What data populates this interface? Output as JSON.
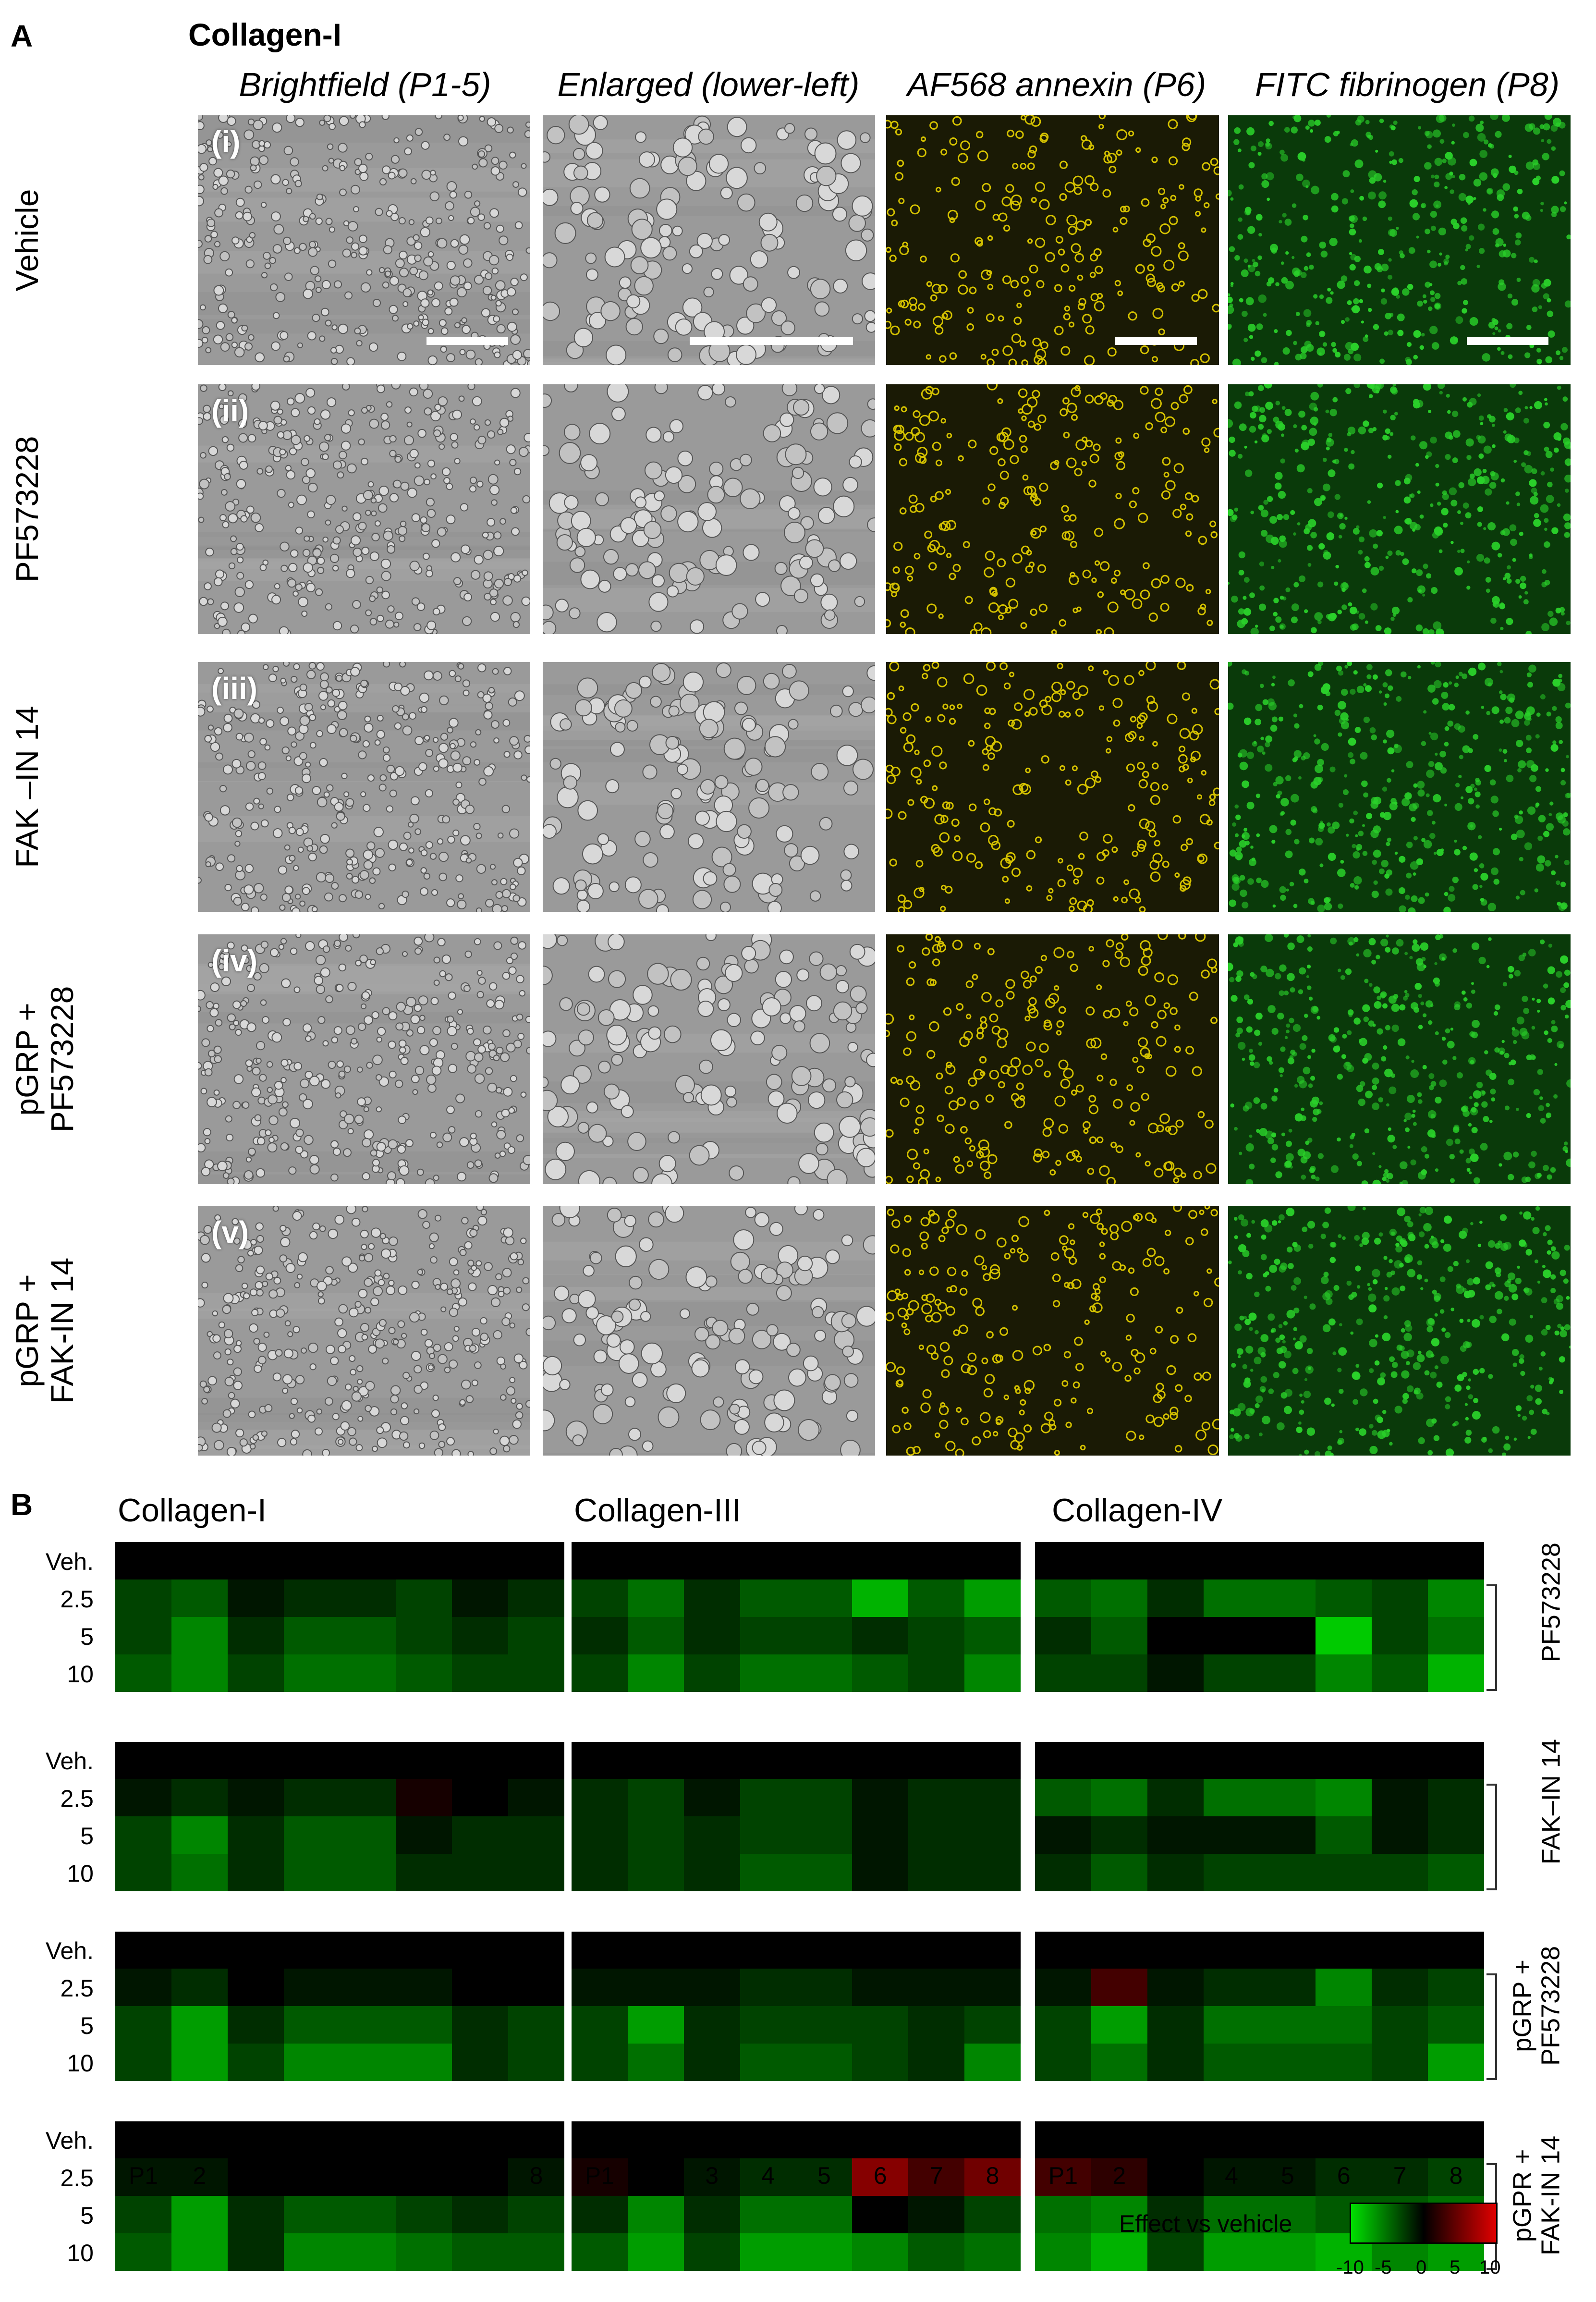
{
  "panel_a": {
    "letter": "A",
    "title": "Collagen-I",
    "column_headers": [
      "Brightfield (P1-5)",
      "Enlarged (lower-left)",
      "AF568 annexin (P6)",
      "FITC fibrinogen (P8)"
    ],
    "rows": [
      {
        "roman": "(i)",
        "label_lines": [
          "Vehicle"
        ]
      },
      {
        "roman": "(ii)",
        "label_lines": [
          "PF573228"
        ]
      },
      {
        "roman": "(iii)",
        "label_lines": [
          "FAK –IN 14"
        ]
      },
      {
        "roman": "(iv)",
        "label_lines": [
          "pGRP +",
          "PF573228"
        ]
      },
      {
        "roman": "(v)",
        "label_lines": [
          "pGRP +",
          "FAK-IN 14"
        ]
      }
    ],
    "image_colors": {
      "brightfield": "#9a9a9a",
      "annexin": "#1a1a05",
      "annexin_dot": "#d4c100",
      "fibrinogen": "#0a3a0a",
      "fibrinogen_dot": "#2ad12a"
    }
  },
  "panel_b": {
    "letter": "B",
    "collagen_titles": [
      "Collagen-I",
      "Collagen-III",
      "Collagen-IV"
    ],
    "row_labels": [
      "Veh.",
      "2.5",
      "5",
      "10"
    ],
    "column_labels": [
      "P1",
      "2",
      "3",
      "4",
      "5",
      "6",
      "7",
      "8"
    ],
    "group_labels": [
      {
        "lines": [
          "PF573228"
        ]
      },
      {
        "lines": [
          "FAK–IN 14"
        ]
      },
      {
        "lines": [
          "pGRP +",
          "PF573228"
        ]
      },
      {
        "lines": [
          "pGPR +",
          "FAK-IN 14"
        ]
      }
    ],
    "legend": {
      "title": "Effect vs vehicle",
      "ticks": [
        "-10",
        "-5",
        "0",
        "5",
        "10"
      ],
      "low_color": "#00e000",
      "mid_color": "#000000",
      "high_color": "#e00000"
    }
  },
  "chart_data": {
    "type": "heatmap",
    "xlabel": "",
    "ylabel": "",
    "columns": [
      "P1",
      "2",
      "3",
      "4",
      "5",
      "6",
      "7",
      "8"
    ],
    "rows": [
      "Veh.",
      "2.5",
      "5",
      "10"
    ],
    "range": [
      -10,
      10
    ],
    "collagens": [
      "Collagen-I",
      "Collagen-III",
      "Collagen-IV"
    ],
    "groups": [
      "PF573228",
      "FAK–IN 14",
      "pGRP + PF573228",
      "pGPR + FAK-IN 14"
    ],
    "values": [
      [
        [
          [
            0,
            0,
            0,
            0,
            0,
            0,
            0,
            0
          ],
          [
            -3,
            -4,
            -1,
            -2,
            -2,
            -3,
            -1,
            -2
          ],
          [
            -3,
            -6,
            -2,
            -4,
            -4,
            -3,
            -2,
            -3
          ],
          [
            -4,
            -6,
            -3,
            -5,
            -5,
            -4,
            -3,
            -3
          ]
        ],
        [
          [
            0,
            0,
            0,
            0,
            0,
            0,
            0,
            0
          ],
          [
            -1,
            -2,
            -1,
            -2,
            -2,
            1,
            0,
            -1
          ],
          [
            -3,
            -6,
            -2,
            -4,
            -4,
            -1,
            -2,
            -2
          ],
          [
            -3,
            -5,
            -2,
            -4,
            -4,
            -2,
            -2,
            -2
          ]
        ],
        [
          [
            0,
            0,
            0,
            0,
            0,
            0,
            0,
            0
          ],
          [
            -1,
            -2,
            0,
            -1,
            -1,
            -1,
            0,
            0
          ],
          [
            -3,
            -7,
            -2,
            -4,
            -4,
            -4,
            -2,
            -3
          ],
          [
            -3,
            -7,
            -3,
            -6,
            -6,
            -6,
            -2,
            -3
          ]
        ],
        [
          [
            0,
            0,
            0,
            0,
            0,
            0,
            0,
            0
          ],
          [
            -1,
            -1,
            0,
            0,
            0,
            0,
            0,
            -1
          ],
          [
            -3,
            -7,
            -2,
            -4,
            -4,
            -3,
            -2,
            -3
          ],
          [
            -4,
            -7,
            -2,
            -6,
            -6,
            -5,
            -4,
            -4
          ]
        ]
      ],
      [
        [
          [
            0,
            0,
            0,
            0,
            0,
            0,
            0,
            0
          ],
          [
            -3,
            -5,
            -2,
            -4,
            -4,
            -8,
            -4,
            -7
          ],
          [
            -2,
            -4,
            -2,
            -3,
            -3,
            -2,
            -3,
            -4
          ],
          [
            -3,
            -6,
            -3,
            -5,
            -5,
            -4,
            -3,
            -6
          ]
        ],
        [
          [
            0,
            0,
            0,
            0,
            0,
            0,
            0,
            0
          ],
          [
            -2,
            -3,
            -1,
            -3,
            -3,
            -1,
            -2,
            -2
          ],
          [
            -2,
            -3,
            -2,
            -3,
            -3,
            -1,
            -2,
            -2
          ],
          [
            -2,
            -3,
            -2,
            -4,
            -4,
            -1,
            -2,
            -2
          ]
        ],
        [
          [
            0,
            0,
            0,
            0,
            0,
            0,
            0,
            0
          ],
          [
            -1,
            -1,
            -1,
            -2,
            -2,
            -1,
            -1,
            -1
          ],
          [
            -3,
            -7,
            -2,
            -3,
            -3,
            -3,
            -2,
            -3
          ],
          [
            -3,
            -5,
            -2,
            -4,
            -4,
            -3,
            -2,
            -6
          ]
        ],
        [
          [
            0,
            0,
            0,
            0,
            0,
            0,
            0,
            0
          ],
          [
            1,
            0,
            -1,
            -2,
            -2,
            6,
            3,
            5
          ],
          [
            -2,
            -6,
            -2,
            -5,
            -5,
            0,
            -1,
            -3
          ],
          [
            -4,
            -7,
            -3,
            -7,
            -7,
            -6,
            -4,
            -5
          ]
        ]
      ],
      [
        [
          [
            0,
            0,
            0,
            0,
            0,
            0,
            0,
            0
          ],
          [
            -4,
            -5,
            -2,
            -5,
            -5,
            -4,
            -3,
            -6
          ],
          [
            -2,
            -4,
            0,
            0,
            0,
            -9,
            -3,
            -5
          ],
          [
            -3,
            -3,
            -1,
            -3,
            -3,
            -6,
            -4,
            -8
          ]
        ],
        [
          [
            0,
            0,
            0,
            0,
            0,
            0,
            0,
            0
          ],
          [
            -4,
            -5,
            -2,
            -5,
            -5,
            -6,
            -1,
            -2
          ],
          [
            -1,
            -2,
            -1,
            -1,
            -1,
            -4,
            -1,
            -2
          ],
          [
            -2,
            -4,
            -2,
            -3,
            -3,
            -3,
            -3,
            -4
          ]
        ],
        [
          [
            0,
            0,
            0,
            0,
            0,
            0,
            0,
            0
          ],
          [
            -1,
            3,
            -1,
            -2,
            -2,
            -6,
            -2,
            -3
          ],
          [
            -3,
            -7,
            -2,
            -5,
            -5,
            -5,
            -3,
            -4
          ],
          [
            -3,
            -5,
            -2,
            -4,
            -4,
            -4,
            -3,
            -7
          ]
        ],
        [
          [
            0,
            0,
            0,
            0,
            0,
            0,
            0,
            0
          ],
          [
            3,
            2,
            0,
            -1,
            -1,
            -2,
            -2,
            -3
          ],
          [
            -5,
            -6,
            -2,
            -5,
            -5,
            -4,
            -4,
            -5
          ],
          [
            -6,
            -8,
            -3,
            -7,
            -7,
            -8,
            -6,
            -7
          ]
        ]
      ]
    ]
  }
}
